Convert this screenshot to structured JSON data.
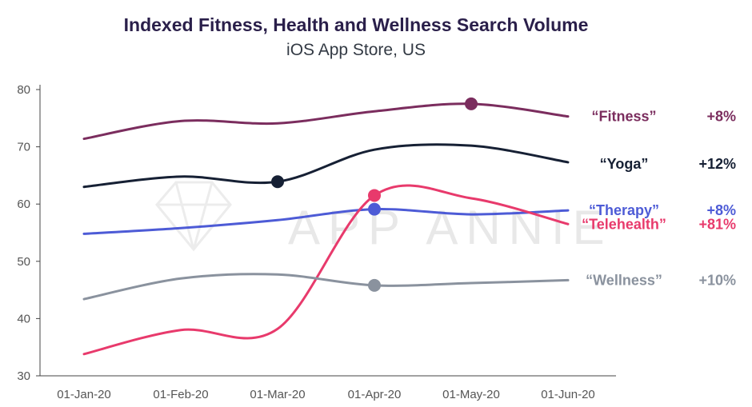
{
  "chart_data": {
    "type": "line",
    "title": "Indexed Fitness, Health and Wellness Search Volume",
    "subtitle": "iOS App Store, US",
    "watermark": "APP ANNIE",
    "x": [
      "01-Jan-20",
      "01-Feb-20",
      "01-Mar-20",
      "01-Apr-20",
      "01-May-20",
      "01-Jun-20"
    ],
    "ylim": [
      30,
      80
    ],
    "yticks": [
      30,
      40,
      50,
      60,
      70,
      80
    ],
    "grid": false,
    "series": [
      {
        "name": "“Fitness”",
        "change": "+8%",
        "color": "#7b2d5e",
        "points": [
          [
            0,
            71.4
          ],
          [
            1,
            74.5
          ],
          [
            2,
            74.1
          ],
          [
            3,
            76.2
          ],
          [
            4,
            77.5
          ],
          [
            5,
            75.3
          ]
        ],
        "marker": 4
      },
      {
        "name": "“Yoga”",
        "change": "+12%",
        "color": "#162034",
        "points": [
          [
            0,
            63
          ],
          [
            1,
            64.8
          ],
          [
            2,
            63.9
          ],
          [
            3,
            69.5
          ],
          [
            4,
            70.2
          ],
          [
            5,
            67.3
          ]
        ],
        "marker": 2
      },
      {
        "name": "“Therapy”",
        "change": "+8%",
        "color": "#4d5bd6",
        "points": [
          [
            0,
            54.8
          ],
          [
            1,
            55.8
          ],
          [
            2,
            57.2
          ],
          [
            3,
            59.1
          ],
          [
            4,
            58.2
          ],
          [
            5,
            58.9
          ]
        ],
        "marker": 3
      },
      {
        "name": "“Telehealth”",
        "change": "+81%",
        "color": "#e83a6c",
        "points": [
          [
            0,
            33.8
          ],
          [
            1,
            38
          ],
          [
            2,
            38.2
          ],
          [
            3,
            61.5
          ],
          [
            4,
            61
          ],
          [
            5,
            56.5
          ]
        ],
        "marker": 3
      },
      {
        "name": "“Wellness”",
        "change": "+10%",
        "color": "#8a929e",
        "points": [
          [
            0,
            43.4
          ],
          [
            1,
            47
          ],
          [
            2,
            47.7
          ],
          [
            3,
            45.8
          ],
          [
            4,
            46.2
          ],
          [
            5,
            46.7
          ]
        ],
        "marker": 3
      }
    ]
  }
}
